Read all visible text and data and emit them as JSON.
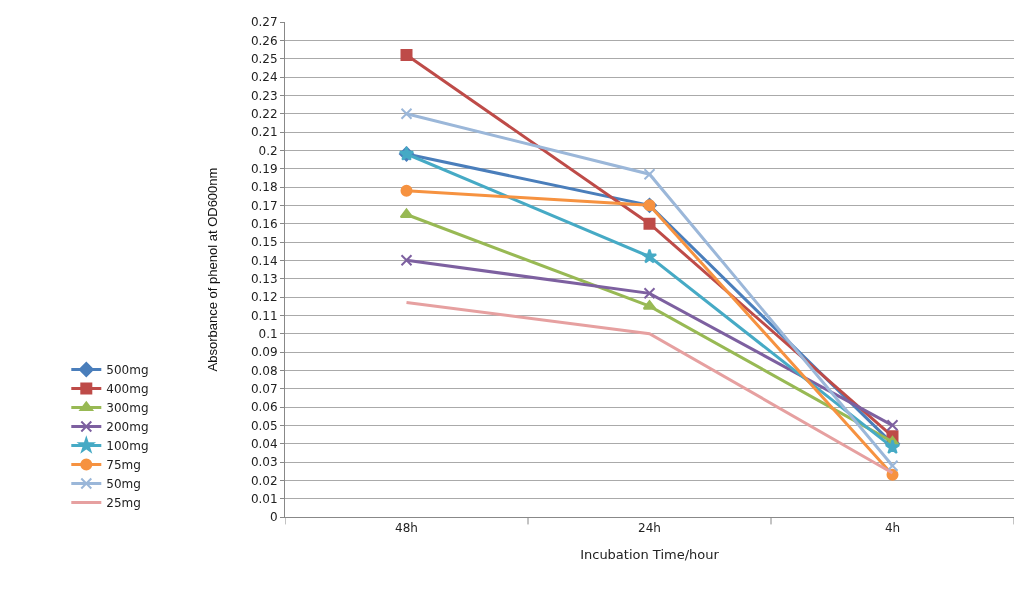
{
  "chart_data": {
    "type": "line",
    "xlabel": "Incubation Time/hour",
    "ylabel": "Absorbance of phenol at OD600nm",
    "categories": [
      "48h",
      "24h",
      "4h"
    ],
    "ylim": [
      0,
      0.27
    ],
    "yticks": [
      0,
      0.01,
      0.02,
      0.03,
      0.04,
      0.05,
      0.06,
      0.07,
      0.08,
      0.09,
      0.1,
      0.11,
      0.12,
      0.13,
      0.14,
      0.15,
      0.16,
      0.17,
      0.18,
      0.19,
      0.2,
      0.21,
      0.22,
      0.23,
      0.24,
      0.25,
      0.26,
      0.27
    ],
    "grid": "y",
    "legend": "left",
    "line_style": "solid",
    "series": [
      {
        "name": "500mg",
        "color": "#4a7ebb",
        "marker": "diamond",
        "values": [
          0.198,
          0.17,
          0.04
        ]
      },
      {
        "name": "400mg",
        "color": "#be4b48",
        "marker": "square",
        "values": [
          0.252,
          0.16,
          0.044
        ]
      },
      {
        "name": "300mg",
        "color": "#98b954",
        "marker": "triangle",
        "values": [
          0.165,
          0.115,
          0.041
        ]
      },
      {
        "name": "200mg",
        "color": "#7d60a0",
        "marker": "cross",
        "values": [
          0.14,
          0.122,
          0.05
        ]
      },
      {
        "name": "100mg",
        "color": "#46aac5",
        "marker": "star",
        "values": [
          0.198,
          0.142,
          0.038
        ]
      },
      {
        "name": "75mg",
        "color": "#f69240",
        "marker": "circle",
        "values": [
          0.178,
          0.17,
          0.023
        ]
      },
      {
        "name": "50mg",
        "color": "#9bb7d9",
        "marker": "cross",
        "values": [
          0.22,
          0.187,
          0.028
        ]
      },
      {
        "name": "25mg",
        "color": "#e6a0a0",
        "marker": "none",
        "values": [
          0.117,
          0.1,
          0.024
        ]
      }
    ]
  }
}
